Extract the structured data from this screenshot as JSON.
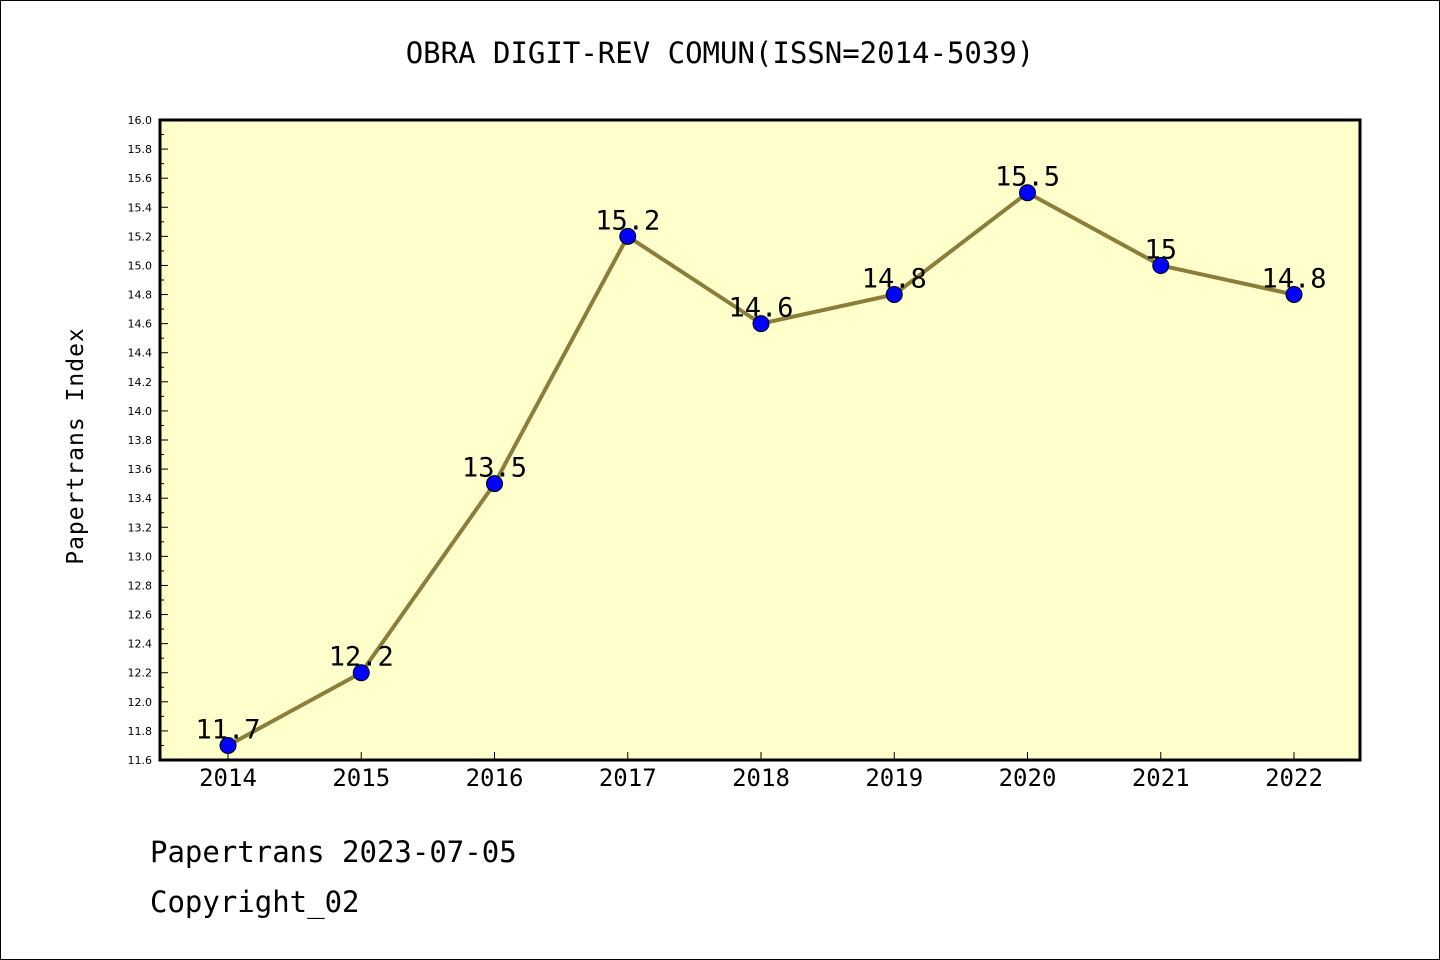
{
  "chart_data": {
    "type": "line",
    "title": "OBRA DIGIT-REV COMUN(ISSN=2014-5039)",
    "xlabel": "",
    "ylabel": "Papertrans Index",
    "categories": [
      "2014",
      "2015",
      "2016",
      "2017",
      "2018",
      "2019",
      "2020",
      "2021",
      "2022"
    ],
    "series": [
      {
        "values": [
          11.7,
          12.2,
          13.5,
          15.2,
          14.6,
          14.8,
          15.5,
          15.0,
          14.8
        ],
        "labels": [
          "11.7",
          "12.2",
          "13.5",
          "15.2",
          "14.6",
          "14.8",
          "15.5",
          "15",
          "14.8"
        ]
      }
    ],
    "ylim": [
      11.6,
      16.0
    ],
    "yticks": [
      "11.6",
      "11.8",
      "12.0",
      "12.2",
      "12.4",
      "12.6",
      "12.8",
      "13.0",
      "13.2",
      "13.4",
      "13.6",
      "13.8",
      "14.0",
      "14.2",
      "14.4",
      "14.6",
      "14.8",
      "15.0",
      "15.2",
      "15.4",
      "15.6",
      "15.8",
      "16.0"
    ],
    "grid": false,
    "legend": "none",
    "colors": {
      "plot_background": "#FFFFCC",
      "line": "#8B7D3A",
      "marker": "#0000FF"
    }
  },
  "footer": {
    "line1": "Papertrans 2023-07-05",
    "line2": "Copyright_02"
  }
}
